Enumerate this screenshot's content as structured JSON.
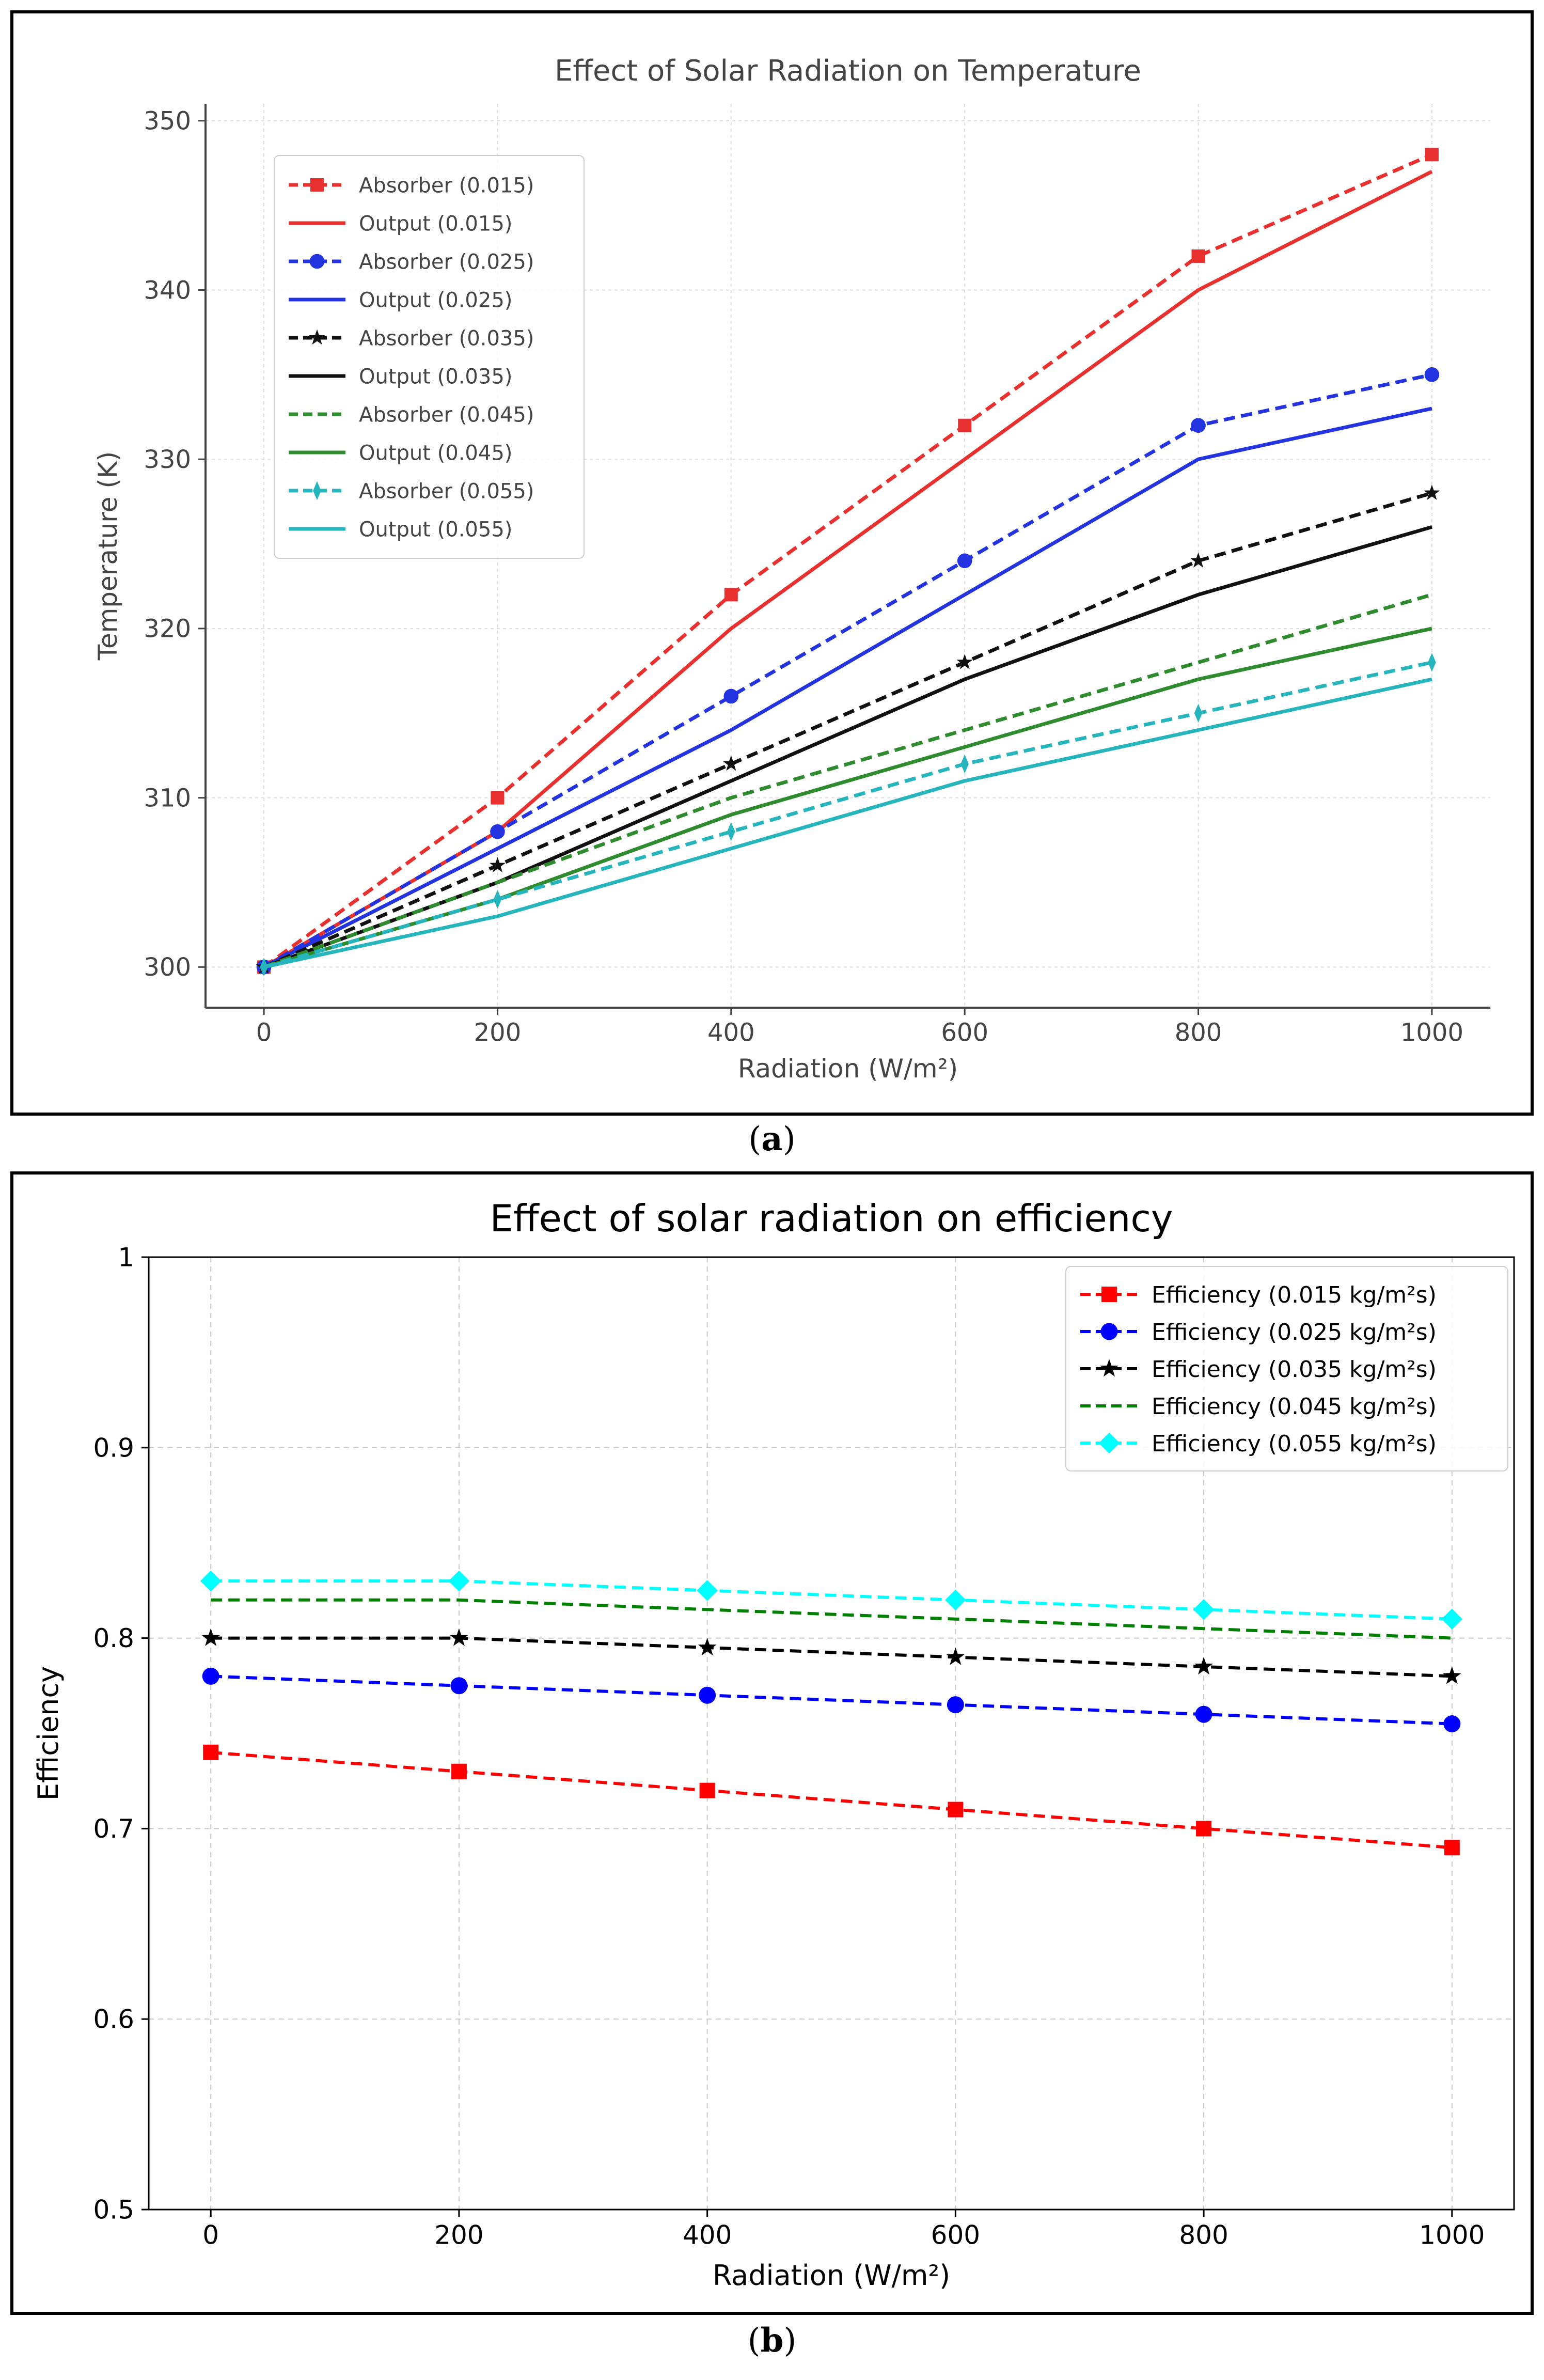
{
  "captions": {
    "a_open": "(",
    "a_label": "a",
    "a_close": ")",
    "b_open": "(",
    "b_label": "b",
    "b_close": ")"
  },
  "chart_data": [
    {
      "type": "line",
      "title": "Effect of Solar Radiation on Temperature",
      "xlabel": "Radiation (W/m²)",
      "ylabel": "Temperature (K)",
      "x": [
        0,
        200,
        400,
        600,
        800,
        1000
      ],
      "xlim": [
        -50,
        1050
      ],
      "ylim": [
        297.6,
        351
      ],
      "xticks": [
        0,
        200,
        400,
        600,
        800,
        1000
      ],
      "yticks": [
        300,
        310,
        320,
        330,
        340,
        350
      ],
      "grid": true,
      "legend_position": "upper-left",
      "series": [
        {
          "name": "Absorber (0.015)",
          "color": "#e8302f",
          "dash": "dashed",
          "marker": "square",
          "values": [
            300,
            310,
            322,
            332,
            342,
            348
          ]
        },
        {
          "name": "Output (0.015)",
          "color": "#e8302f",
          "dash": "solid",
          "marker": "none",
          "values": [
            300,
            308,
            320,
            330,
            340,
            347
          ]
        },
        {
          "name": "Absorber (0.025)",
          "color": "#2433e0",
          "dash": "dashed",
          "marker": "circle",
          "values": [
            300,
            308,
            316,
            324,
            332,
            335
          ]
        },
        {
          "name": "Output (0.025)",
          "color": "#2433e0",
          "dash": "solid",
          "marker": "none",
          "values": [
            300,
            307,
            314,
            322,
            330,
            333
          ]
        },
        {
          "name": "Absorber (0.035)",
          "color": "#111111",
          "dash": "dashed",
          "marker": "star",
          "values": [
            300,
            306,
            312,
            318,
            324,
            328
          ]
        },
        {
          "name": "Output (0.035)",
          "color": "#111111",
          "dash": "solid",
          "marker": "none",
          "values": [
            300,
            305,
            311,
            317,
            322,
            326
          ]
        },
        {
          "name": "Absorber (0.045)",
          "color": "#2e8b2e",
          "dash": "dashed",
          "marker": "none",
          "values": [
            300,
            305,
            310,
            314,
            318,
            322
          ]
        },
        {
          "name": "Output (0.045)",
          "color": "#2e8b2e",
          "dash": "solid",
          "marker": "none",
          "values": [
            300,
            304,
            309,
            313,
            317,
            320
          ]
        },
        {
          "name": "Absorber (0.055)",
          "color": "#26b5bd",
          "dash": "dashed",
          "marker": "thin-diamond",
          "values": [
            300,
            304,
            308,
            312,
            315,
            318
          ]
        },
        {
          "name": "Output (0.055)",
          "color": "#26b5bd",
          "dash": "solid",
          "marker": "none",
          "values": [
            300,
            303,
            307,
            311,
            314,
            317
          ]
        }
      ]
    },
    {
      "type": "line",
      "title": "Effect of solar radiation on efficiency",
      "xlabel": "Radiation (W/m²)",
      "ylabel": "Efficiency",
      "x": [
        0,
        200,
        400,
        600,
        800,
        1000
      ],
      "xlim": [
        -50,
        1050
      ],
      "ylim": [
        0.5,
        1.0
      ],
      "xticks": [
        0,
        200,
        400,
        600,
        800,
        1000
      ],
      "yticks": [
        0.5,
        0.6,
        0.7,
        0.8,
        0.9,
        1.0
      ],
      "grid": true,
      "legend_position": "upper-right",
      "series": [
        {
          "name": "Efficiency (0.015 kg/m²s)",
          "color": "#ff0000",
          "dash": "dashed",
          "marker": "square",
          "values": [
            0.74,
            0.73,
            0.72,
            0.71,
            0.7,
            0.69
          ]
        },
        {
          "name": "Efficiency (0.025 kg/m²s)",
          "color": "#0000ff",
          "dash": "dashed",
          "marker": "circle",
          "values": [
            0.78,
            0.775,
            0.77,
            0.765,
            0.76,
            0.755
          ]
        },
        {
          "name": "Efficiency (0.035 kg/m²s)",
          "color": "#000000",
          "dash": "dashed",
          "marker": "star",
          "values": [
            0.8,
            0.8,
            0.795,
            0.79,
            0.785,
            0.78
          ]
        },
        {
          "name": "Efficiency (0.045 kg/m²s)",
          "color": "#008000",
          "dash": "dashed",
          "marker": "none",
          "values": [
            0.82,
            0.82,
            0.815,
            0.81,
            0.805,
            0.8
          ]
        },
        {
          "name": "Efficiency (0.055 kg/m²s)",
          "color": "#00ffff",
          "dash": "dashed",
          "marker": "diamond",
          "values": [
            0.83,
            0.83,
            0.825,
            0.82,
            0.815,
            0.81
          ]
        }
      ]
    }
  ]
}
